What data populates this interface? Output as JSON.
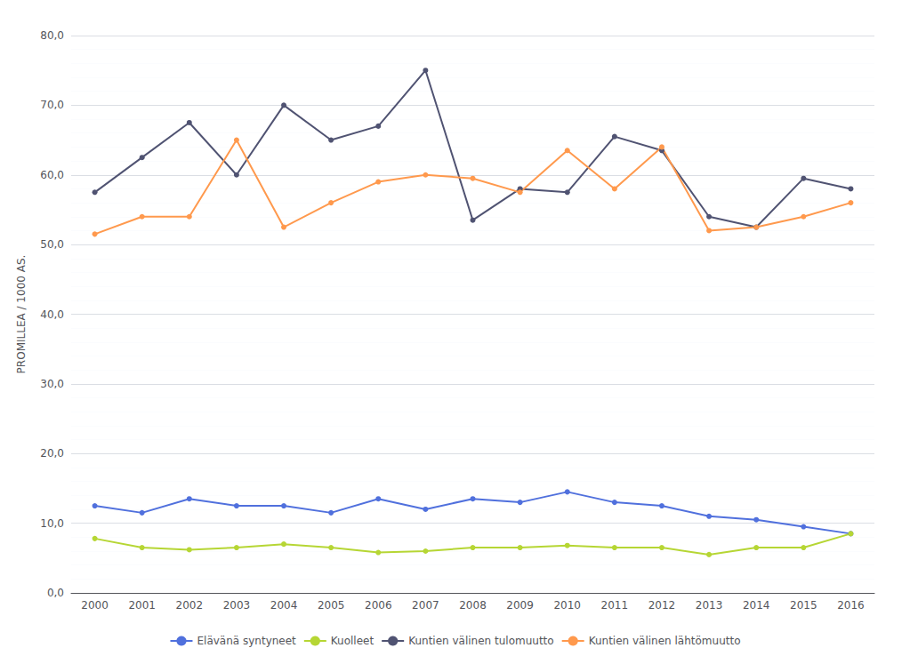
{
  "chart_data": {
    "type": "line",
    "ylabel": "PROMILLEA / 1000 AS.",
    "categories": [
      "2000",
      "2001",
      "2002",
      "2003",
      "2004",
      "2005",
      "2006",
      "2007",
      "2008",
      "2009",
      "2010",
      "2011",
      "2012",
      "2013",
      "2014",
      "2015",
      "2016"
    ],
    "series": [
      {
        "name": "Elävänä syntyneet",
        "values": [
          12.5,
          11.5,
          13.5,
          12.5,
          12.5,
          11.5,
          13.5,
          12.0,
          13.5,
          13.0,
          14.5,
          13.0,
          12.5,
          11.0,
          10.5,
          9.5,
          8.5
        ]
      },
      {
        "name": "Kuolleet",
        "values": [
          7.8,
          6.5,
          6.2,
          6.5,
          7.0,
          6.5,
          5.8,
          6.0,
          6.5,
          6.5,
          6.8,
          6.5,
          6.5,
          5.5,
          6.5,
          6.5,
          8.5
        ]
      },
      {
        "name": "Kuntien välinen tulomuutto",
        "values": [
          57.5,
          62.5,
          67.5,
          60.0,
          70.0,
          65.0,
          67.0,
          75.0,
          53.5,
          58.0,
          57.5,
          65.5,
          63.5,
          54.0,
          52.5,
          59.5,
          58.0
        ]
      },
      {
        "name": "Kuntien välinen lähtömuutto",
        "values": [
          51.5,
          54.0,
          54.0,
          65.0,
          52.5,
          56.0,
          59.0,
          60.0,
          59.5,
          57.5,
          63.5,
          58.0,
          64.0,
          52.0,
          52.5,
          54.0,
          56.0
        ]
      }
    ],
    "ylim": [
      0,
      80
    ],
    "yticks": [
      {
        "value": 0,
        "label": "0,0"
      },
      {
        "value": 10,
        "label": "10,0"
      },
      {
        "value": 20,
        "label": "20,0"
      },
      {
        "value": 30,
        "label": "30,0"
      },
      {
        "value": 40,
        "label": "40,0"
      },
      {
        "value": 50,
        "label": "50,0"
      },
      {
        "value": 60,
        "label": "60,0"
      },
      {
        "value": 70,
        "label": "70,0"
      },
      {
        "value": 80,
        "label": "80,0"
      }
    ],
    "grid": true,
    "legend": "bottom",
    "marker": "circle"
  }
}
